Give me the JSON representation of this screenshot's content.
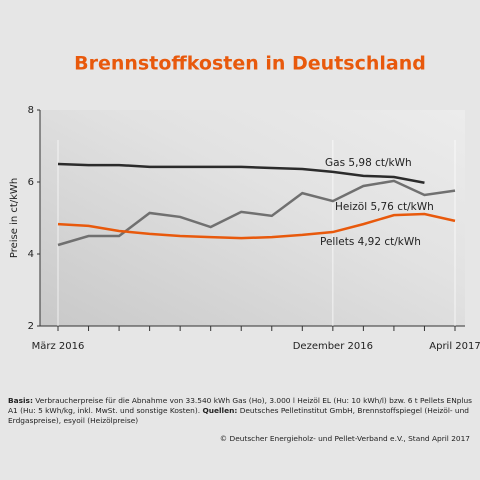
{
  "chart_data": {
    "type": "line",
    "title": "Brennstoffkosten in Deutschland",
    "y_label": "Preise in ct/kWh",
    "categories": [
      "März 2016",
      null,
      null,
      null,
      null,
      null,
      null,
      null,
      null,
      "Dezember 2016",
      null,
      null,
      null,
      "April 2017"
    ],
    "ylim": [
      2,
      8
    ],
    "yticks": [
      2,
      4,
      6,
      8
    ],
    "series": [
      {
        "name": "Gas",
        "color": "#2b2b2b",
        "values": [
          6.5,
          6.47,
          6.47,
          6.42,
          6.42,
          6.42,
          6.42,
          6.39,
          6.36,
          6.28,
          6.17,
          6.14,
          5.98,
          null
        ],
        "value_labels": [
          null,
          null,
          null,
          null,
          null,
          null,
          null,
          null,
          null,
          null,
          null,
          null,
          "5,98 ct/kWh",
          null
        ]
      },
      {
        "name": "Heizöl",
        "color": "#707070",
        "values": [
          4.25,
          4.5,
          4.5,
          5.14,
          5.03,
          4.75,
          5.17,
          5.06,
          5.69,
          5.47,
          5.89,
          6.03,
          5.64,
          5.76
        ],
        "value_labels": [
          null,
          null,
          null,
          null,
          null,
          null,
          null,
          null,
          null,
          null,
          null,
          null,
          null,
          "5,76 ct/kWh"
        ]
      },
      {
        "name": "Pellets",
        "color": "#e8590c",
        "values": [
          4.83,
          4.78,
          4.64,
          4.56,
          4.5,
          4.47,
          4.44,
          4.47,
          4.53,
          4.61,
          4.83,
          5.08,
          5.11,
          4.92
        ],
        "value_labels": [
          null,
          null,
          null,
          null,
          null,
          null,
          null,
          null,
          null,
          null,
          null,
          null,
          null,
          "4,92 ct/kWh"
        ]
      }
    ]
  },
  "notes": {
    "basis_label": "Basis:",
    "basis_text": "Verbraucherpreise für die Abnahme von 33.540 kWh Gas (Ho), 3.000 l Heizöl EL (Hu: 10 kWh/l) bzw. 6 t Pellets ENplus A1 (Hu: 5 kWh/kg, inkl. MwSt. und sonstige Kosten).",
    "sources_label": "Quellen:",
    "sources_text": "Deutsches Pelletinstitut GmbH, Brennstoffspiegel (Heizöl- und Erdgaspreise), esyoil (Heizölpreise)",
    "copyright": "© Deutscher Energieholz- und Pellet-Verband e.V., Stand April 2017"
  }
}
